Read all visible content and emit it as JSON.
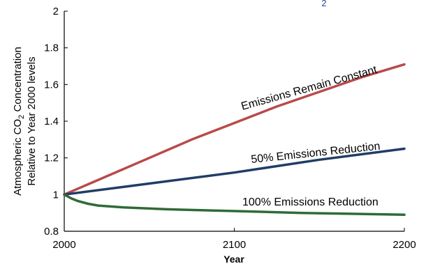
{
  "header_fragment": {
    "text": "2"
  },
  "chart_data": {
    "type": "line",
    "xlabel": "Year",
    "ylabel_line1": "Atmospheric CO",
    "ylabel_subscript": "2",
    "ylabel_line1_rest": " Concentration",
    "ylabel_line2": "Relative to Year 2000 levels",
    "xlim": [
      2000,
      2200
    ],
    "ylim": [
      0.8,
      2
    ],
    "x_ticks": [
      2000,
      2100,
      2200
    ],
    "x_tick_labels": [
      "2000",
      "2100",
      "2200"
    ],
    "y_ticks": [
      0.8,
      1,
      1.2,
      1.4,
      1.6,
      1.8,
      2
    ],
    "y_tick_labels": [
      "0.8",
      "1",
      "1.2",
      "1.4",
      "1.6",
      "1.8",
      "2"
    ],
    "grid": false,
    "series": [
      {
        "name": "Emissions Remain Constant",
        "color": "#b94a4a",
        "x": [
          2000,
          2025,
          2050,
          2075,
          2100,
          2125,
          2150,
          2175,
          2200
        ],
        "y": [
          1.0,
          1.1,
          1.2,
          1.3,
          1.39,
          1.48,
          1.56,
          1.64,
          1.71
        ]
      },
      {
        "name": "50% Emissions Reduction",
        "color": "#1f3e66",
        "x": [
          2000,
          2050,
          2100,
          2150,
          2200
        ],
        "y": [
          1.0,
          1.06,
          1.12,
          1.19,
          1.25
        ]
      },
      {
        "name": "100% Emissions Reduction",
        "color": "#2f6b36",
        "x": [
          2000,
          2004,
          2008,
          2014,
          2020,
          2035,
          2060,
          2100,
          2140,
          2200
        ],
        "y": [
          1.0,
          0.98,
          0.965,
          0.95,
          0.94,
          0.93,
          0.92,
          0.91,
          0.9,
          0.89
        ]
      }
    ]
  }
}
